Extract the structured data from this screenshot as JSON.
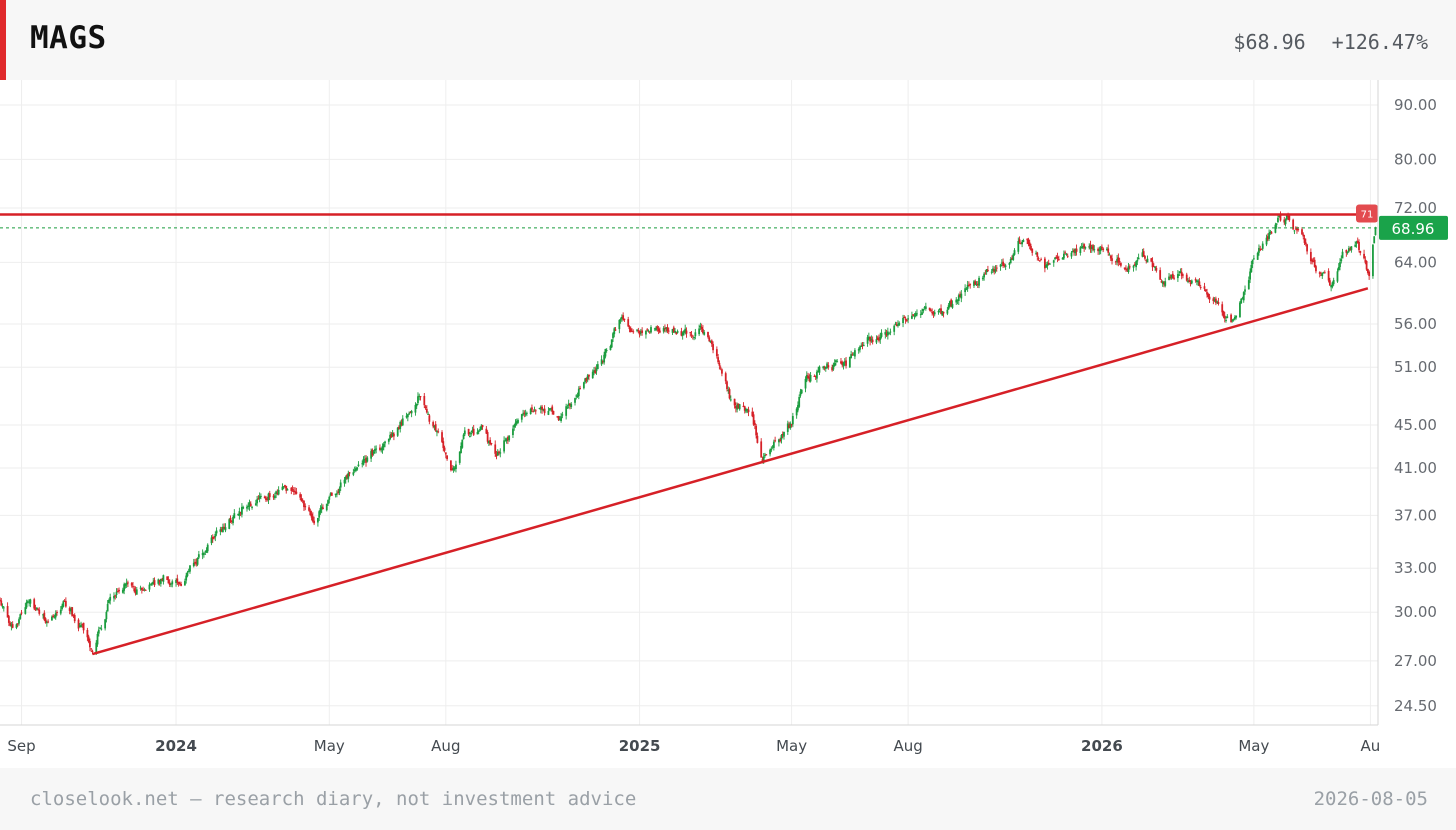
{
  "header": {
    "ticker": "MAGS",
    "price": "$68.96",
    "change": "+126.47%"
  },
  "footer": {
    "note": "closelook.net — research diary, not investment advice",
    "date": "2026-08-05"
  },
  "colors": {
    "accent": "#e0292b",
    "up": "#1a9c3e",
    "down": "#d62027",
    "trendline": "#d62027",
    "price_tag": "#1aa34a"
  },
  "chart_data": {
    "type": "candlestick",
    "title": "",
    "xlabel": "",
    "ylabel": "",
    "y_scale": "log",
    "ylim": [
      23.5,
      95
    ],
    "xlim": [
      "2023-08-15",
      "2026-08-07"
    ],
    "grid": true,
    "y_ticks": [
      "90.00",
      "80.00",
      "72.00",
      "64.00",
      "56.00",
      "51.00",
      "45.00",
      "41.00",
      "37.00",
      "33.00",
      "30.00",
      "27.00",
      "24.50"
    ],
    "x_ticks": [
      {
        "label": "Sep",
        "date": "2023-09-01",
        "bold": false
      },
      {
        "label": "2024",
        "date": "2024-01-01",
        "bold": true
      },
      {
        "label": "May",
        "date": "2024-05-01",
        "bold": false
      },
      {
        "label": "Aug",
        "date": "2024-08-01",
        "bold": false
      },
      {
        "label": "2025",
        "date": "2025-01-01",
        "bold": true
      },
      {
        "label": "May",
        "date": "2025-05-01",
        "bold": false
      },
      {
        "label": "Aug",
        "date": "2025-08-01",
        "bold": false
      },
      {
        "label": "2026",
        "date": "2026-01-01",
        "bold": true
      },
      {
        "label": "May",
        "date": "2026-05-01",
        "bold": false
      },
      {
        "label": "Au",
        "date": "2026-08-01",
        "bold": false
      }
    ],
    "last_price": 68.96,
    "last_price_label": "68.96",
    "resistance": {
      "value": 71.0,
      "label": "71"
    },
    "trendline": {
      "start": {
        "date": "2023-10-27",
        "value": 27.4
      },
      "end": {
        "date": "2026-07-30",
        "value": 60.5
      }
    },
    "series": [
      {
        "values": [
          [
            "2023-08-15",
            30.8
          ],
          [
            "2023-08-25",
            29.0
          ],
          [
            "2023-09-08",
            30.8
          ],
          [
            "2023-09-22",
            29.3
          ],
          [
            "2023-10-05",
            30.6
          ],
          [
            "2023-10-18",
            29.0
          ],
          [
            "2023-10-27",
            27.6
          ],
          [
            "2023-11-10",
            30.8
          ],
          [
            "2023-11-24",
            32.0
          ],
          [
            "2023-12-08",
            31.2
          ],
          [
            "2023-12-22",
            32.6
          ],
          [
            "2024-01-03",
            31.8
          ],
          [
            "2024-01-19",
            33.8
          ],
          [
            "2024-02-02",
            35.8
          ],
          [
            "2024-02-16",
            37.2
          ],
          [
            "2024-03-04",
            38.2
          ],
          [
            "2024-03-22",
            39.2
          ],
          [
            "2024-04-05",
            39.0
          ],
          [
            "2024-04-19",
            36.5
          ],
          [
            "2024-05-03",
            38.8
          ],
          [
            "2024-05-17",
            40.5
          ],
          [
            "2024-06-07",
            42.5
          ],
          [
            "2024-06-21",
            44.0
          ],
          [
            "2024-07-10",
            48.0
          ],
          [
            "2024-07-19",
            45.5
          ],
          [
            "2024-07-26",
            44.2
          ],
          [
            "2024-08-05",
            40.5
          ],
          [
            "2024-08-16",
            43.8
          ],
          [
            "2024-08-30",
            44.5
          ],
          [
            "2024-09-10",
            42.0
          ],
          [
            "2024-09-27",
            45.8
          ],
          [
            "2024-10-15",
            46.5
          ],
          [
            "2024-11-01",
            46.0
          ],
          [
            "2024-11-15",
            49.0
          ],
          [
            "2024-12-02",
            51.5
          ],
          [
            "2024-12-17",
            56.5
          ],
          [
            "2025-01-03",
            55.0
          ],
          [
            "2025-01-17",
            55.8
          ],
          [
            "2025-02-05",
            54.5
          ],
          [
            "2025-02-19",
            55.5
          ],
          [
            "2025-03-03",
            52.0
          ],
          [
            "2025-03-14",
            47.5
          ],
          [
            "2025-03-31",
            46.0
          ],
          [
            "2025-04-08",
            41.5
          ],
          [
            "2025-04-17",
            43.0
          ],
          [
            "2025-04-30",
            45.0
          ],
          [
            "2025-05-13",
            50.0
          ],
          [
            "2025-05-30",
            51.0
          ],
          [
            "2025-06-13",
            51.5
          ],
          [
            "2025-06-30",
            54.0
          ],
          [
            "2025-07-15",
            55.0
          ],
          [
            "2025-07-31",
            56.5
          ],
          [
            "2025-08-15",
            58.0
          ],
          [
            "2025-08-29",
            57.5
          ],
          [
            "2025-09-15",
            60.0
          ],
          [
            "2025-09-30",
            62.5
          ],
          [
            "2025-10-15",
            63.5
          ],
          [
            "2025-10-29",
            67.0
          ],
          [
            "2025-11-10",
            65.5
          ],
          [
            "2025-11-20",
            63.0
          ],
          [
            "2025-12-05",
            65.5
          ],
          [
            "2025-12-22",
            66.0
          ],
          [
            "2026-01-07",
            65.5
          ],
          [
            "2026-01-20",
            63.5
          ],
          [
            "2026-02-05",
            65.0
          ],
          [
            "2026-02-18",
            61.5
          ],
          [
            "2026-03-05",
            62.5
          ],
          [
            "2026-03-20",
            60.5
          ],
          [
            "2026-04-01",
            58.5
          ],
          [
            "2026-04-13",
            56.5
          ],
          [
            "2026-04-22",
            59.5
          ],
          [
            "2026-05-05",
            66.0
          ],
          [
            "2026-05-20",
            70.0
          ],
          [
            "2026-05-29",
            70.5
          ],
          [
            "2026-06-10",
            66.5
          ],
          [
            "2026-06-22",
            62.5
          ],
          [
            "2026-06-30",
            61.0
          ],
          [
            "2026-07-10",
            65.0
          ],
          [
            "2026-07-21",
            67.0
          ],
          [
            "2026-07-27",
            64.5
          ],
          [
            "2026-07-31",
            62.5
          ],
          [
            "2026-08-05",
            68.96
          ]
        ]
      }
    ]
  }
}
